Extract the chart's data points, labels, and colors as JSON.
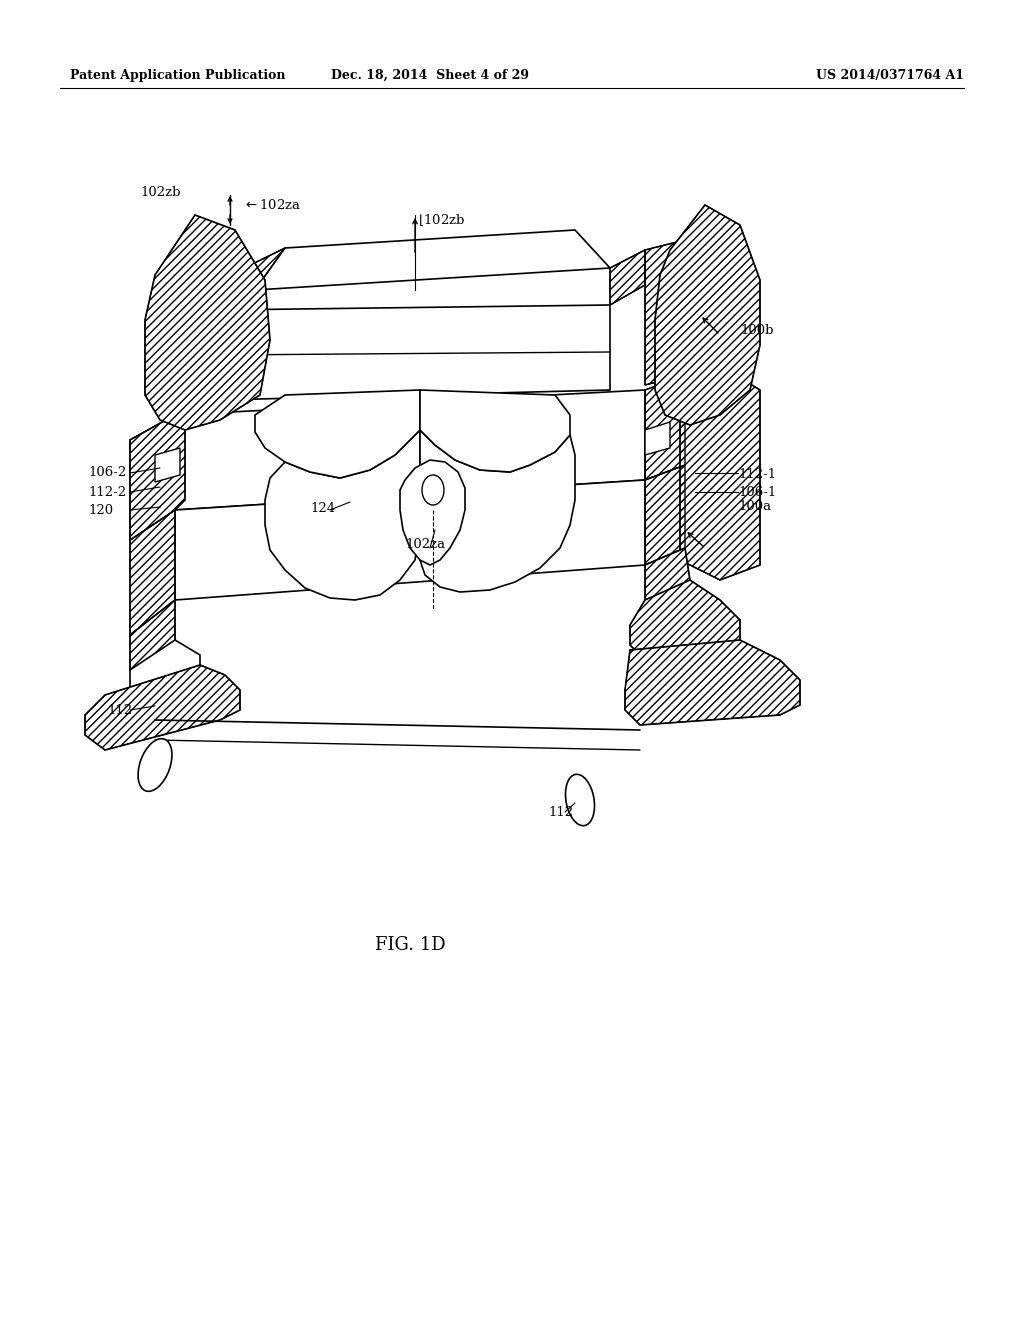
{
  "title_left": "Patent Application Publication",
  "title_mid": "Dec. 18, 2014  Sheet 4 of 29",
  "title_right": "US 2014/0371764 A1",
  "figure_label": "FIG. 1D",
  "bg_color": "#ffffff",
  "line_color": "#000000"
}
